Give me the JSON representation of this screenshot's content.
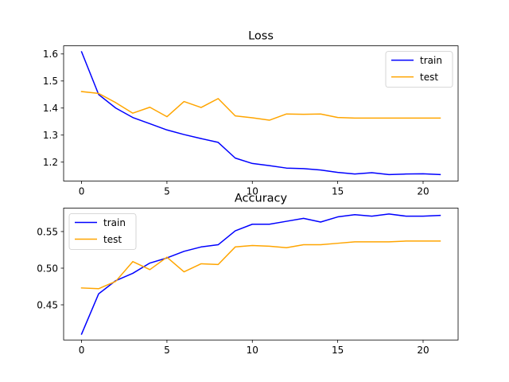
{
  "chart_data": [
    {
      "type": "line",
      "title": "Loss",
      "xlabel": "",
      "ylabel": "",
      "xlim": [
        -1.05,
        22.05
      ],
      "ylim": [
        1.13,
        1.63
      ],
      "xticks": [
        0,
        5,
        10,
        15,
        20
      ],
      "yticks": [
        1.2,
        1.3,
        1.4,
        1.5,
        1.6
      ],
      "ytick_labels": [
        "1.2",
        "1.3",
        "1.4",
        "1.5",
        "1.6"
      ],
      "legend_position": "top-right",
      "grid": false,
      "x": [
        0,
        1,
        2,
        3,
        4,
        5,
        6,
        7,
        8,
        9,
        10,
        11,
        12,
        13,
        14,
        15,
        16,
        17,
        18,
        19,
        20,
        21
      ],
      "series": [
        {
          "name": "train",
          "color": "#0000ff",
          "values": [
            1.608,
            1.45,
            1.4,
            1.365,
            1.342,
            1.319,
            1.302,
            1.287,
            1.273,
            1.215,
            1.195,
            1.187,
            1.178,
            1.176,
            1.171,
            1.162,
            1.156,
            1.161,
            1.154,
            1.156,
            1.157,
            1.154
          ]
        },
        {
          "name": "test",
          "color": "#ffa500",
          "values": [
            1.461,
            1.454,
            1.42,
            1.381,
            1.403,
            1.368,
            1.424,
            1.402,
            1.435,
            1.371,
            1.364,
            1.355,
            1.378,
            1.377,
            1.378,
            1.365,
            1.363,
            1.363,
            1.363,
            1.363,
            1.363,
            1.363
          ]
        }
      ]
    },
    {
      "type": "line",
      "title": "Accuracy",
      "xlabel": "",
      "ylabel": "",
      "xlim": [
        -1.05,
        22.05
      ],
      "ylim": [
        0.402,
        0.582
      ],
      "xticks": [
        0,
        5,
        10,
        15,
        20
      ],
      "yticks": [
        0.45,
        0.5,
        0.55
      ],
      "ytick_labels": [
        "0.45",
        "0.50",
        "0.55"
      ],
      "legend_position": "top-left",
      "grid": false,
      "x": [
        0,
        1,
        2,
        3,
        4,
        5,
        6,
        7,
        8,
        9,
        10,
        11,
        12,
        13,
        14,
        15,
        16,
        17,
        18,
        19,
        20,
        21
      ],
      "series": [
        {
          "name": "train",
          "color": "#0000ff",
          "values": [
            0.41,
            0.465,
            0.483,
            0.493,
            0.507,
            0.514,
            0.523,
            0.529,
            0.532,
            0.551,
            0.56,
            0.56,
            0.564,
            0.568,
            0.563,
            0.57,
            0.573,
            0.571,
            0.574,
            0.571,
            0.571,
            0.572
          ]
        },
        {
          "name": "test",
          "color": "#ffa500",
          "values": [
            0.473,
            0.472,
            0.482,
            0.509,
            0.498,
            0.515,
            0.495,
            0.506,
            0.505,
            0.529,
            0.531,
            0.53,
            0.528,
            0.532,
            0.532,
            0.534,
            0.536,
            0.536,
            0.536,
            0.537,
            0.537,
            0.537
          ]
        }
      ]
    }
  ]
}
